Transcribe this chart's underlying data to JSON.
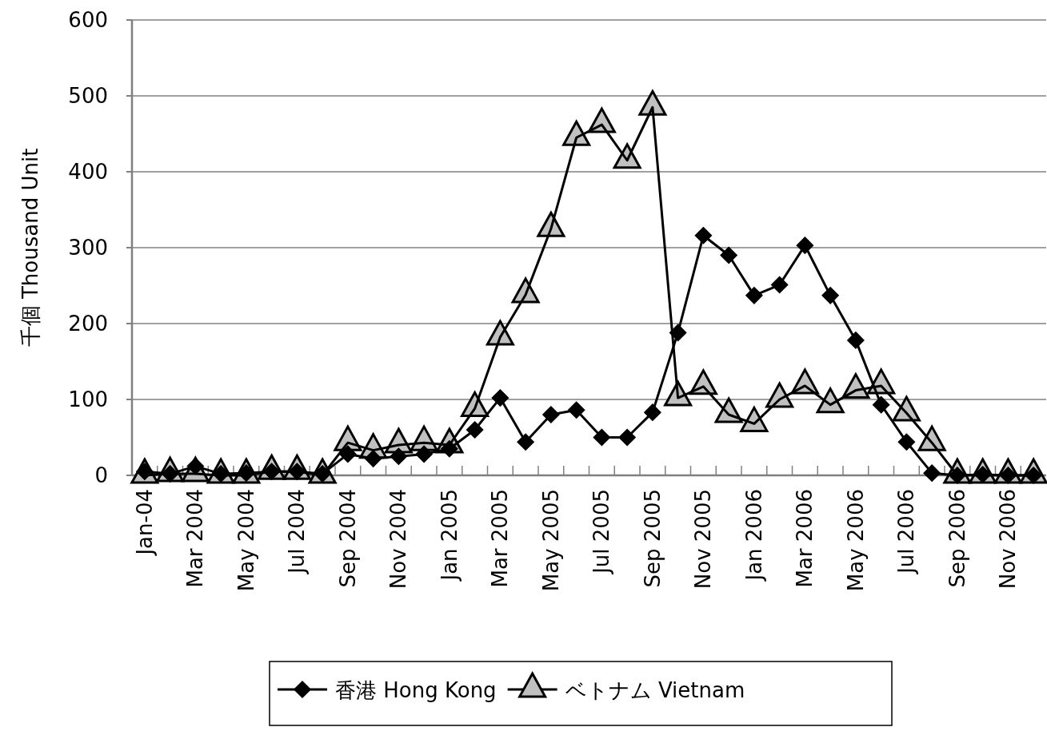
{
  "chart_data": {
    "type": "line",
    "ylabel": "千個 Thousand Unit",
    "categories": [
      "Jan-04",
      null,
      "Mar 2004",
      null,
      "May 2004",
      null,
      "Jul 2004",
      null,
      "Sep 2004",
      null,
      "Nov 2004",
      null,
      "Jan 2005",
      null,
      "Mar 2005",
      null,
      "May 2005",
      null,
      "Jul 2005",
      null,
      "Sep 2005",
      null,
      "Nov 2005",
      null,
      "Jan 2006",
      null,
      "Mar 2006",
      null,
      "May 2006",
      null,
      "Jul 2006",
      null,
      "Sep 2006",
      null,
      "Nov 2006",
      null
    ],
    "series": [
      {
        "name": "香港 Hong Kong",
        "color": "#000000",
        "marker": "diamond",
        "values": [
          5,
          2,
          12,
          2,
          3,
          5,
          5,
          2,
          28,
          22,
          25,
          28,
          35,
          60,
          102,
          44,
          80,
          86,
          50,
          50,
          83,
          188,
          316,
          290,
          237,
          251,
          303,
          237,
          178,
          93,
          44,
          3,
          0,
          1,
          0,
          0
        ]
      },
      {
        "name": "ベトナム Vietnam",
        "color": "#c0c0c0",
        "marker": "triangle",
        "values": [
          0,
          2,
          2,
          0,
          0,
          5,
          5,
          0,
          43,
          33,
          40,
          43,
          40,
          88,
          182,
          238,
          325,
          445,
          462,
          415,
          485,
          102,
          117,
          80,
          68,
          100,
          118,
          93,
          112,
          118,
          82,
          43,
          0,
          0,
          0,
          0
        ]
      }
    ],
    "ylim": [
      0,
      600
    ],
    "yticks": [
      0,
      100,
      200,
      300,
      400,
      500,
      600
    ],
    "grid": "y",
    "legend": "bottom"
  }
}
